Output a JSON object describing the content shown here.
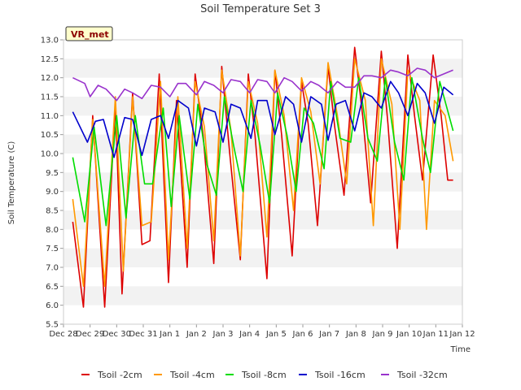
{
  "chart_data": {
    "type": "line",
    "title": "Soil Temperature Set 3",
    "xlabel": "Time",
    "ylabel": "Soil Temperature (C)",
    "site_label": "VR_met",
    "ylim": [
      5.5,
      13.0
    ],
    "yticks": [
      5.5,
      6.0,
      6.5,
      7.0,
      7.5,
      8.0,
      8.5,
      9.0,
      9.5,
      10.0,
      10.5,
      11.0,
      11.5,
      12.0,
      12.5,
      13.0
    ],
    "ytick_labels": [
      "5.5",
      "6.0",
      "6.5",
      "7.0",
      "7.5",
      "8.0",
      "8.5",
      "9.0",
      "9.5",
      "10.0",
      "10.5",
      "11.0",
      "11.5",
      "12.0",
      "12.5",
      "13.0"
    ],
    "xlim": [
      0,
      15
    ],
    "xticks": [
      0,
      1,
      2,
      3,
      4,
      5,
      6,
      7,
      8,
      9,
      10,
      11,
      12,
      13,
      14,
      15
    ],
    "xtick_labels": [
      "Dec 28",
      "Dec 29",
      "Dec 30",
      "Dec 31",
      "Jan 1",
      "Jan 2",
      "Jan 3",
      "Jan 4",
      "Jan 5",
      "Jan 6",
      "Jan 7",
      "Jan 8",
      "Jan 9",
      "Jan 10",
      "Jan 11",
      "Jan 12"
    ],
    "grid": "horizontal bands",
    "legend_position": "bottom",
    "series": [
      {
        "name": "Tsoil -2cm",
        "color": "#dd0000",
        "x": [
          0.35,
          0.75,
          1.1,
          1.55,
          1.95,
          2.2,
          2.6,
          2.95,
          3.25,
          3.6,
          3.95,
          4.25,
          4.65,
          4.95,
          5.25,
          5.65,
          5.95,
          6.25,
          6.65,
          6.95,
          7.2,
          7.65,
          7.95,
          8.2,
          8.6,
          8.95,
          9.2,
          9.55,
          9.95,
          10.2,
          10.55,
          10.95,
          11.25,
          11.55,
          11.95,
          12.2,
          12.55,
          12.95,
          13.2,
          13.5,
          13.9,
          14.2,
          14.45,
          14.65
        ],
        "y": [
          8.2,
          5.95,
          11.0,
          5.95,
          11.3,
          6.3,
          11.6,
          7.6,
          7.7,
          12.1,
          6.6,
          11.4,
          7.0,
          12.1,
          10.5,
          7.1,
          12.3,
          10.0,
          7.2,
          12.1,
          10.5,
          6.7,
          12.2,
          10.5,
          7.3,
          11.9,
          10.8,
          8.1,
          12.3,
          10.7,
          8.9,
          12.8,
          11.0,
          8.7,
          12.7,
          10.8,
          7.5,
          12.6,
          11.0,
          9.3,
          12.6,
          11.0,
          9.3,
          9.3
        ]
      },
      {
        "name": "Tsoil -4cm",
        "color": "#ff9900",
        "x": [
          0.35,
          0.75,
          1.1,
          1.55,
          1.95,
          2.25,
          2.6,
          2.95,
          3.3,
          3.65,
          3.95,
          4.3,
          4.65,
          4.95,
          5.3,
          5.65,
          5.95,
          6.3,
          6.65,
          6.95,
          7.3,
          7.65,
          7.95,
          8.3,
          8.65,
          8.95,
          9.3,
          9.65,
          9.95,
          10.3,
          10.65,
          10.95,
          11.35,
          11.65,
          11.95,
          12.35,
          12.65,
          12.95,
          13.4,
          13.65,
          13.95,
          14.35,
          14.65
        ],
        "y": [
          8.8,
          6.5,
          10.9,
          6.5,
          11.5,
          6.9,
          11.5,
          8.1,
          8.2,
          11.9,
          7.2,
          11.5,
          7.5,
          11.9,
          10.7,
          7.7,
          12.2,
          10.6,
          7.3,
          11.9,
          10.8,
          7.8,
          12.2,
          11.0,
          8.5,
          12.0,
          11.1,
          9.2,
          12.4,
          11.0,
          9.2,
          12.5,
          11.4,
          8.1,
          12.5,
          11.3,
          8.0,
          12.2,
          11.4,
          8.0,
          11.4,
          11.0,
          9.8
        ]
      },
      {
        "name": "Tsoil -8cm",
        "color": "#00dd00",
        "x": [
          0.35,
          0.8,
          1.15,
          1.6,
          2.0,
          2.35,
          2.7,
          3.05,
          3.35,
          3.75,
          4.05,
          4.35,
          4.75,
          5.05,
          5.4,
          5.75,
          6.05,
          6.4,
          6.75,
          7.05,
          7.4,
          7.75,
          8.05,
          8.4,
          8.75,
          9.05,
          9.4,
          9.8,
          10.05,
          10.4,
          10.8,
          11.1,
          11.45,
          11.8,
          12.1,
          12.45,
          12.8,
          13.1,
          13.5,
          13.8,
          14.15,
          14.65
        ],
        "y": [
          9.9,
          8.2,
          10.7,
          8.1,
          11.0,
          8.3,
          11.0,
          9.2,
          9.2,
          11.2,
          8.6,
          11.0,
          8.8,
          11.3,
          9.7,
          8.9,
          11.5,
          10.2,
          9.0,
          11.4,
          10.2,
          8.7,
          11.6,
          10.5,
          9.0,
          11.2,
          10.8,
          9.6,
          11.9,
          10.4,
          10.3,
          12.0,
          10.4,
          9.8,
          12.0,
          10.3,
          9.3,
          12.0,
          10.4,
          9.5,
          11.9,
          10.6
        ]
      },
      {
        "name": "Tsoil -16cm",
        "color": "#0000cc",
        "x": [
          0.35,
          0.9,
          1.2,
          1.5,
          1.9,
          2.3,
          2.6,
          2.95,
          3.3,
          3.65,
          3.95,
          4.3,
          4.7,
          5.0,
          5.3,
          5.7,
          6.0,
          6.3,
          6.65,
          7.05,
          7.3,
          7.65,
          7.95,
          8.35,
          8.65,
          8.95,
          9.3,
          9.7,
          9.95,
          10.25,
          10.6,
          10.95,
          11.3,
          11.6,
          11.95,
          12.3,
          12.6,
          12.95,
          13.3,
          13.6,
          13.95,
          14.3,
          14.65
        ],
        "y": [
          11.1,
          10.3,
          10.85,
          10.9,
          9.9,
          10.95,
          10.9,
          9.95,
          10.9,
          11.0,
          10.4,
          11.4,
          11.2,
          10.2,
          11.2,
          11.1,
          10.3,
          11.3,
          11.2,
          10.4,
          11.4,
          11.4,
          10.5,
          11.5,
          11.3,
          10.3,
          11.5,
          11.3,
          10.35,
          11.3,
          11.4,
          10.6,
          11.6,
          11.5,
          11.2,
          11.9,
          11.6,
          11.0,
          11.85,
          11.6,
          10.8,
          11.75,
          11.55
        ]
      },
      {
        "name": "Tsoil -32cm",
        "color": "#9933cc",
        "x": [
          0.35,
          0.8,
          1.0,
          1.3,
          1.6,
          2.0,
          2.3,
          2.6,
          2.95,
          3.3,
          3.65,
          4.0,
          4.3,
          4.6,
          5.0,
          5.3,
          5.65,
          6.0,
          6.3,
          6.65,
          7.0,
          7.3,
          7.65,
          7.95,
          8.3,
          8.6,
          8.95,
          9.3,
          9.6,
          9.95,
          10.3,
          10.6,
          10.95,
          11.3,
          11.6,
          11.95,
          12.3,
          12.6,
          12.95,
          13.3,
          13.6,
          13.95,
          14.3,
          14.65
        ],
        "y": [
          12.0,
          11.85,
          11.5,
          11.8,
          11.7,
          11.4,
          11.7,
          11.6,
          11.45,
          11.8,
          11.75,
          11.5,
          11.85,
          11.85,
          11.55,
          11.9,
          11.8,
          11.6,
          11.95,
          11.9,
          11.6,
          11.95,
          11.9,
          11.6,
          12.0,
          11.9,
          11.65,
          11.9,
          11.8,
          11.6,
          11.9,
          11.75,
          11.75,
          12.05,
          12.05,
          12.0,
          12.2,
          12.15,
          12.05,
          12.25,
          12.2,
          12.0,
          12.1,
          12.2
        ]
      }
    ]
  }
}
